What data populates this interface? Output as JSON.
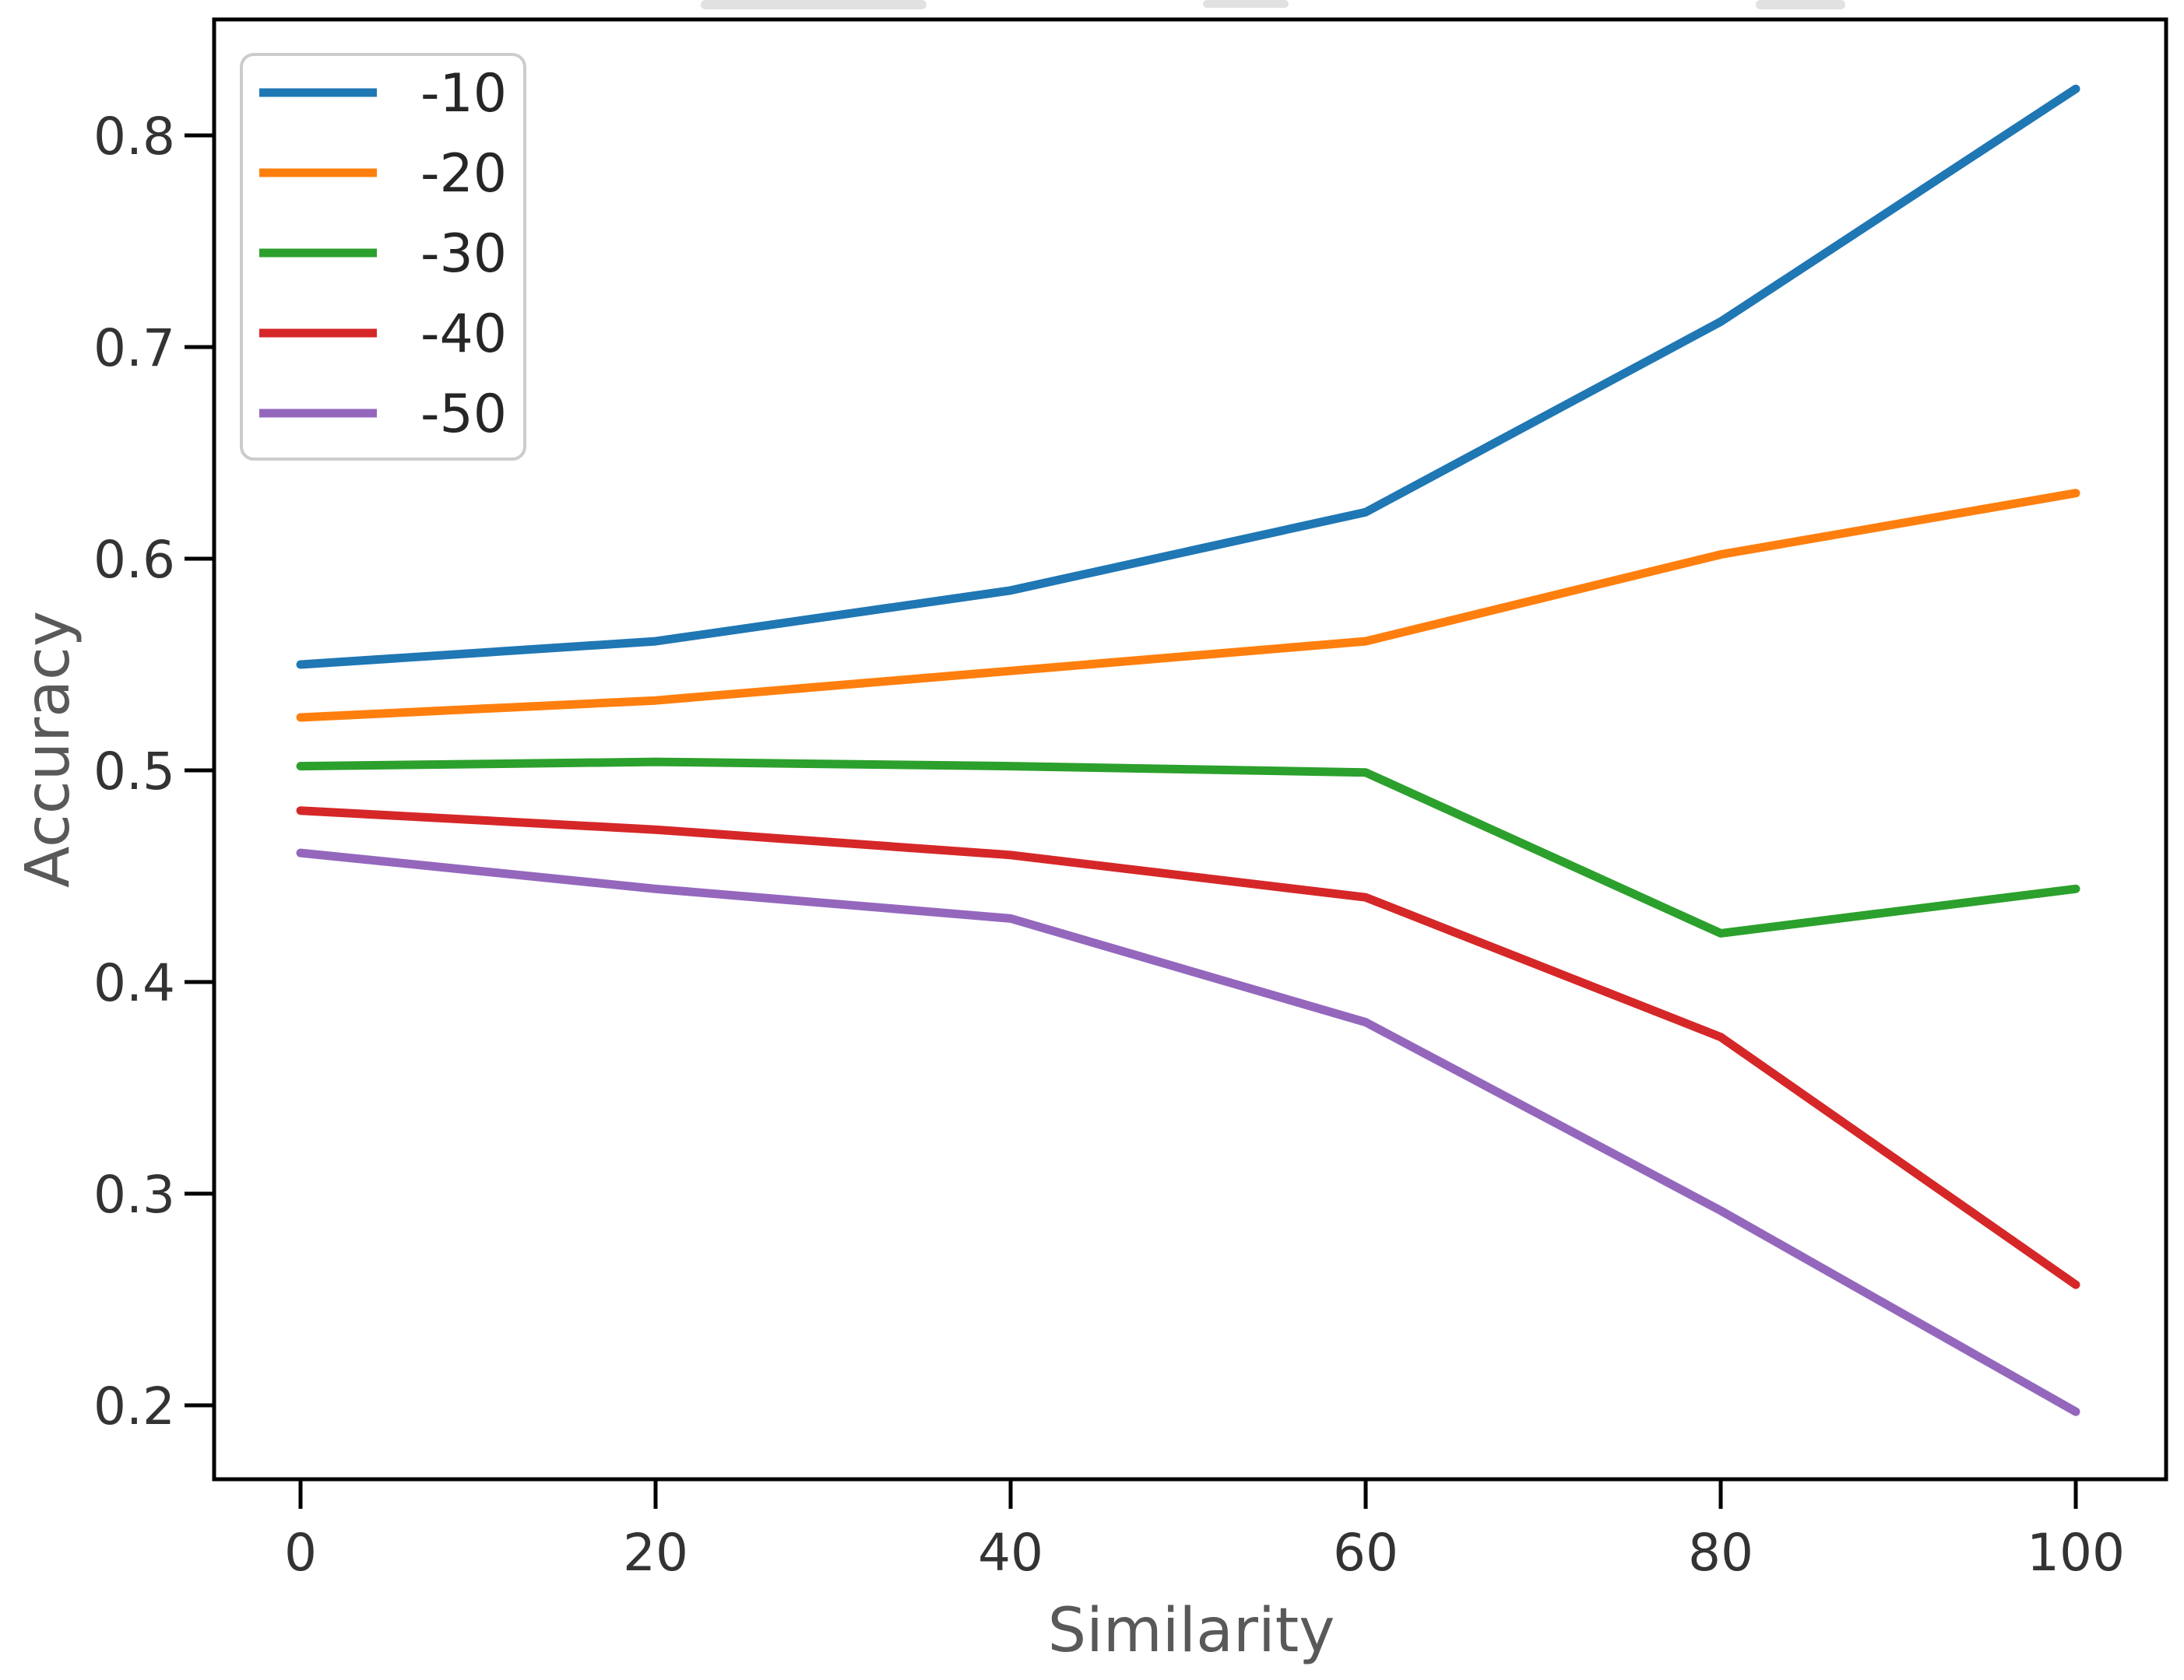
{
  "chart_data": {
    "type": "line",
    "title": "",
    "xlabel": "Similarity",
    "ylabel": "Accuracy",
    "x": [
      0,
      20,
      40,
      60,
      80,
      100
    ],
    "xtick_labels": [
      "0",
      "20",
      "40",
      "60",
      "80",
      "100"
    ],
    "ytick_values": [
      0.2,
      0.3,
      0.4,
      0.5,
      0.6,
      0.7,
      0.8
    ],
    "ytick_labels": [
      "0.2",
      "0.3",
      "0.4",
      "0.5",
      "0.6",
      "0.7",
      "0.8"
    ],
    "xlim": [
      -4.9,
      105.1
    ],
    "ylim": [
      0.165,
      0.855
    ],
    "grid": false,
    "legend_position": "upper left",
    "series": [
      {
        "name": "-10",
        "color": "#1f77b4",
        "values": [
          0.55,
          0.561,
          0.585,
          0.622,
          0.712,
          0.822
        ]
      },
      {
        "name": "-20",
        "color": "#ff7f0e",
        "values": [
          0.525,
          0.533,
          0.547,
          0.561,
          0.602,
          0.631
        ]
      },
      {
        "name": "-30",
        "color": "#2ca02c",
        "values": [
          0.502,
          0.504,
          0.502,
          0.499,
          0.423,
          0.444
        ]
      },
      {
        "name": "-40",
        "color": "#d62728",
        "values": [
          0.481,
          0.472,
          0.46,
          0.44,
          0.374,
          0.257
        ]
      },
      {
        "name": "-50",
        "color": "#9467bd",
        "values": [
          0.461,
          0.444,
          0.43,
          0.381,
          0.292,
          0.197
        ]
      }
    ]
  }
}
